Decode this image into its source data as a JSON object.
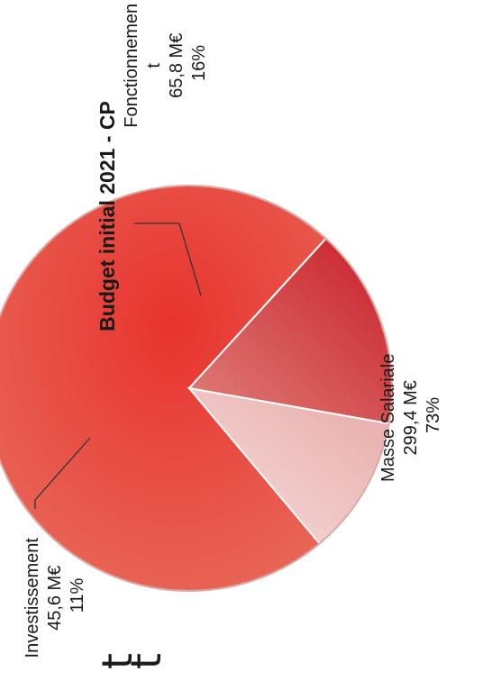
{
  "chart_data": {
    "type": "pie",
    "title": "Budget initial 2021 - CP",
    "unit": "M€",
    "slices": [
      {
        "name": "Masse Salariale",
        "value": "299,4 M€",
        "value_num": 299.4,
        "percent": "73%",
        "percent_num": 73,
        "color": "#e23c38"
      },
      {
        "name": "Fonctionnement",
        "value": "65,8 M€",
        "value_num": 65.8,
        "percent": "16%",
        "percent_num": 16,
        "color": "#cc2b2f"
      },
      {
        "name": "Investissement",
        "value": "45,6 M€",
        "value_num": 45.6,
        "percent": "11%",
        "percent_num": 11,
        "color": "#f0c6c4"
      }
    ],
    "label_lines": {
      "masse": [
        "Masse Salariale",
        "299,4 M€",
        "73%"
      ],
      "fonct": [
        "Fonctionnemen",
        "t",
        "65,8 M€",
        "16%"
      ],
      "invest": [
        "Investissement",
        "45,6 M€",
        "11%"
      ]
    },
    "stray_glyphs": [
      "t",
      "t"
    ],
    "legend": "none",
    "orientation": "rotated 90° counter-clockwise"
  }
}
